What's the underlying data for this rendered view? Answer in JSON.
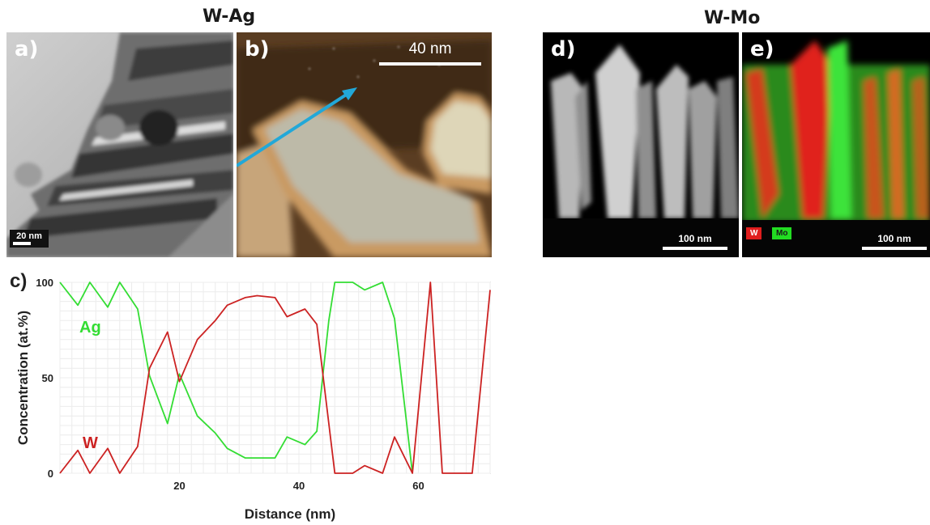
{
  "figure": {
    "group_left_title": "W-Ag",
    "group_right_title": "W-Mo",
    "panels": {
      "a": {
        "letter": "a)",
        "scale_label": "20 nm"
      },
      "b": {
        "letter": "b)",
        "scale_label": "40 nm"
      },
      "d": {
        "letter": "d)",
        "scale_label": "100 nm"
      },
      "e": {
        "letter": "e)",
        "scale_label": "100 nm",
        "legend_w": "W",
        "legend_mo": "Mo"
      }
    },
    "colors": {
      "ag_line": "#33dd33",
      "w_line": "#cc2222",
      "arrow": "#22a8d8"
    }
  },
  "chart_data": {
    "type": "line",
    "panel_label": "c)",
    "xlabel": "Distance (nm)",
    "ylabel": "Concentration (at.%)",
    "xlim": [
      0,
      72
    ],
    "ylim": [
      0,
      100
    ],
    "xticks": [
      20,
      40,
      60
    ],
    "yticks": [
      0,
      50,
      100
    ],
    "grid": true,
    "series": [
      {
        "name": "Ag",
        "color": "#33dd33",
        "x": [
          0,
          3,
          5,
          8,
          10,
          13,
          15,
          18,
          20,
          23,
          26,
          28,
          31,
          33,
          36,
          38,
          41,
          43,
          45,
          46,
          48,
          49,
          51,
          54,
          56,
          59
        ],
        "y": [
          100,
          88,
          100,
          87,
          100,
          86,
          51,
          26,
          52,
          30,
          21,
          13,
          8,
          8,
          8,
          19,
          15,
          22,
          80,
          100,
          100,
          100,
          96,
          100,
          81,
          0
        ]
      },
      {
        "name": "W",
        "color": "#cc2222",
        "x": [
          0,
          3,
          5,
          8,
          10,
          13,
          15,
          18,
          20,
          23,
          26,
          28,
          31,
          33,
          36,
          38,
          41,
          43,
          46,
          49,
          51,
          54,
          56,
          59,
          62,
          64,
          67,
          69,
          72
        ],
        "y": [
          0,
          12,
          0,
          13,
          0,
          14,
          55,
          74,
          48,
          70,
          80,
          88,
          92,
          93,
          92,
          82,
          86,
          78,
          0,
          0,
          4,
          0,
          19,
          0,
          100,
          0,
          0,
          0,
          96
        ]
      }
    ]
  }
}
